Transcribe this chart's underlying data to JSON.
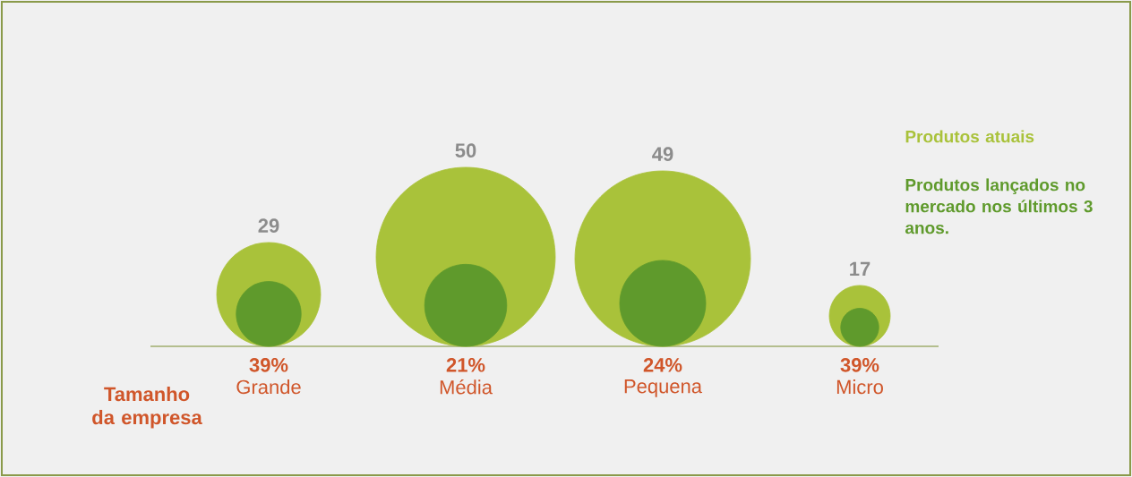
{
  "chart_data": {
    "type": "other",
    "categories": [
      "Grande",
      "Média",
      "Pequena",
      "Micro"
    ],
    "xlabel": "Tamanho da empresa",
    "series": [
      {
        "name": "Produtos atuais",
        "color": "#a9c23a",
        "values": [
          29,
          50,
          49,
          17
        ],
        "value_labels": [
          "29",
          "50",
          "49",
          "17"
        ]
      },
      {
        "name": "Produtos lançados no mercado nos últimos 3 anos.",
        "color": "#5f9a2c",
        "values": [
          39,
          21,
          24,
          39
        ],
        "value_labels": [
          "39%",
          "21%",
          "24%",
          "39%"
        ]
      }
    ]
  }
}
